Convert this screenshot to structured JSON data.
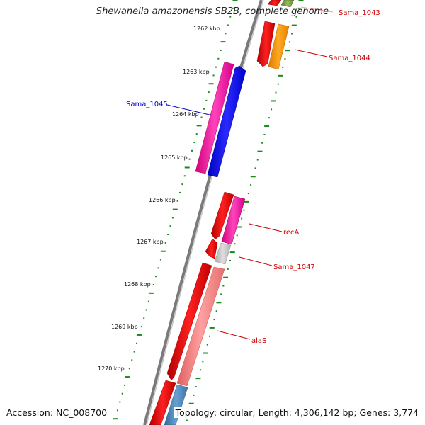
{
  "header": {
    "title": "Shewanella amazonensis SB2B, complete genome"
  },
  "footer": {
    "accession": "Accession: NC_008700",
    "summary": "Topology: circular; Length: 4,306,142 bp; Genes: 3,774"
  },
  "ticks": [
    "1262 kbp",
    "1263 kbp",
    "1264 kbp",
    "1265 kbp",
    "1266 kbp",
    "1267 kbp",
    "1268 kbp",
    "1269 kbp",
    "1270 kbp"
  ],
  "gene_labels": [
    {
      "name": "Sama_1043",
      "color": "#cc0000"
    },
    {
      "name": "Sama_1044",
      "color": "#cc0000"
    },
    {
      "name": "Sama_1045",
      "color": "#0000cc"
    },
    {
      "name": "recA",
      "color": "#cc0000"
    },
    {
      "name": "Sama_1047",
      "color": "#cc0000"
    },
    {
      "name": "alaS",
      "color": "#cc0000"
    }
  ],
  "colors": {
    "backbone": "#808080",
    "tick_dots": "#1a8a1a",
    "red": "#ee0000",
    "magenta": "#ff22aa",
    "blue": "#1010ff",
    "orange": "#ff9900",
    "gray": "#c0c0c0",
    "salmon": "#f08080",
    "steelblue": "#4682b4",
    "olive": "#7a9a3a"
  }
}
